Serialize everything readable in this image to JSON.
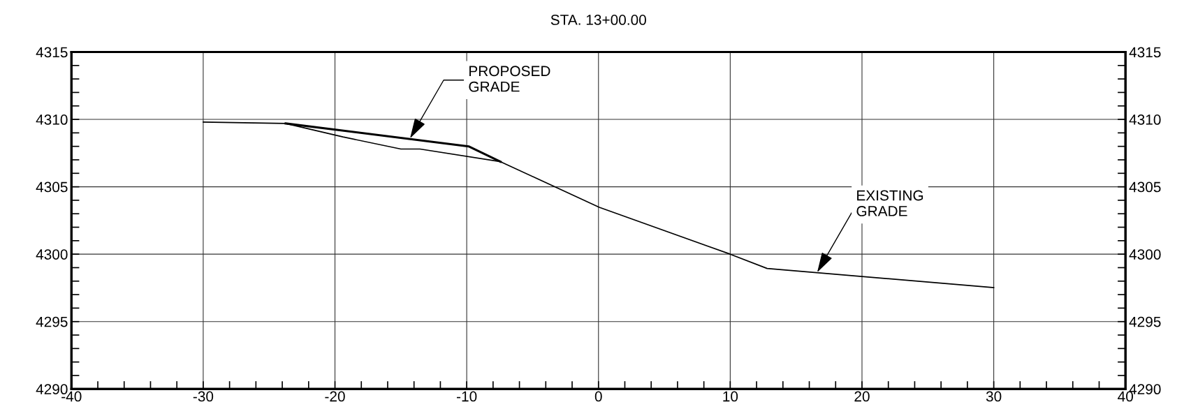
{
  "chart_data": {
    "type": "line",
    "title": "STA. 13+00.00",
    "series": [
      {
        "color": "#000000",
        "x": [
          -30,
          -23.75,
          -19.4,
          -15,
          -13.55,
          -7.43,
          0.06,
          10,
          12.8,
          30
        ],
        "values": [
          4309.8,
          4309.7,
          4308.7,
          4307.8,
          4307.8,
          4306.86,
          4303.48,
          4300,
          4298.94,
          4297.52
        ]
      },
      {
        "color": "#000000",
        "x": [
          -23.75,
          -9.86,
          -7.43
        ],
        "values": [
          4309.7,
          4308.0,
          4306.86
        ]
      }
    ],
    "xlim": [
      -40,
      40
    ],
    "xticks": [
      -40,
      {
        "value": -38,
        "label": null
      },
      {
        "value": -36,
        "label": null
      },
      {
        "value": -34,
        "label": null
      },
      {
        "value": -32,
        "label": null
      },
      -30,
      {
        "value": -28,
        "label": null
      },
      {
        "value": -26,
        "label": null
      },
      {
        "value": -24,
        "label": null
      },
      {
        "value": -22,
        "label": null
      },
      -20,
      {
        "value": -18,
        "label": null
      },
      {
        "value": -16,
        "label": null
      },
      {
        "value": -14,
        "label": null
      },
      {
        "value": -12,
        "label": null
      },
      -10,
      {
        "value": -8,
        "label": null
      },
      {
        "value": -6,
        "label": null
      },
      {
        "value": -4,
        "label": null
      },
      {
        "value": -2,
        "label": null
      },
      0,
      {
        "value": 2,
        "label": null
      },
      {
        "value": 4,
        "label": null
      },
      {
        "value": 6,
        "label": null
      },
      {
        "value": 8,
        "label": null
      },
      10,
      {
        "value": 12,
        "label": null
      },
      {
        "value": 14,
        "label": null
      },
      {
        "value": 16,
        "label": null
      },
      {
        "value": 18,
        "label": null
      },
      20,
      {
        "value": 22,
        "label": null
      },
      {
        "value": 24,
        "label": null
      },
      {
        "value": 26,
        "label": null
      },
      {
        "value": 28,
        "label": null
      },
      30,
      {
        "value": 32,
        "label": null
      },
      {
        "value": 34,
        "label": null
      },
      {
        "value": 36,
        "label": null
      },
      {
        "value": 38,
        "label": null
      },
      40
    ],
    "ylim": [
      4290,
      4315
    ],
    "yticks": [
      4290,
      {
        "value": 4291,
        "label": null
      },
      {
        "value": 4292,
        "label": null
      },
      {
        "value": 4293,
        "label": null
      },
      {
        "value": 4294,
        "label": null
      },
      4295,
      {
        "value": 4296,
        "label": null
      },
      {
        "value": 4297,
        "label": null
      },
      {
        "value": 4298,
        "label": null
      },
      {
        "value": 4299,
        "label": null
      },
      4300,
      {
        "value": 4301,
        "label": null
      },
      {
        "value": 4302,
        "label": null
      },
      {
        "value": 4303,
        "label": null
      },
      {
        "value": 4304,
        "label": null
      },
      4305,
      {
        "value": 4306,
        "label": null
      },
      {
        "value": 4307,
        "label": null
      },
      {
        "value": 4308,
        "label": null
      },
      {
        "value": 4309,
        "label": null
      },
      4310,
      {
        "value": 4311,
        "label": null
      },
      {
        "value": 4312,
        "label": null
      },
      {
        "value": 4313,
        "label": null
      },
      {
        "value": 4314,
        "label": null
      },
      4315
    ],
    "y2lim": [
      4290,
      4315
    ],
    "y2ticks": [
      4290,
      {
        "value": 4291,
        "label": null
      },
      {
        "value": 4292,
        "label": null
      },
      {
        "value": 4293,
        "label": null
      },
      {
        "value": 4294,
        "label": null
      },
      4295,
      {
        "value": 4296,
        "label": null
      },
      {
        "value": 4297,
        "label": null
      },
      {
        "value": 4298,
        "label": null
      },
      {
        "value": 4299,
        "label": null
      },
      4300,
      {
        "value": 4301,
        "label": null
      },
      {
        "value": 4302,
        "label": null
      },
      {
        "value": 4303,
        "label": null
      },
      {
        "value": 4304,
        "label": null
      },
      4305,
      {
        "value": 4306,
        "label": null
      },
      {
        "value": 4307,
        "label": null
      },
      {
        "value": 4308,
        "label": null
      },
      {
        "value": 4309,
        "label": null
      },
      4310,
      {
        "value": 4311,
        "label": null
      },
      {
        "value": 4312,
        "label": null
      },
      {
        "value": 4313,
        "label": null
      },
      {
        "value": 4314,
        "label": null
      },
      4315
    ],
    "grid": true,
    "annotations": [
      {
        "text": "PROPOSED\nGRADE",
        "x": -14.3,
        "y": 4308.6
      },
      {
        "text": "EXISTING\nGRADE",
        "x": 16.6,
        "y": 4298.65
      }
    ]
  }
}
